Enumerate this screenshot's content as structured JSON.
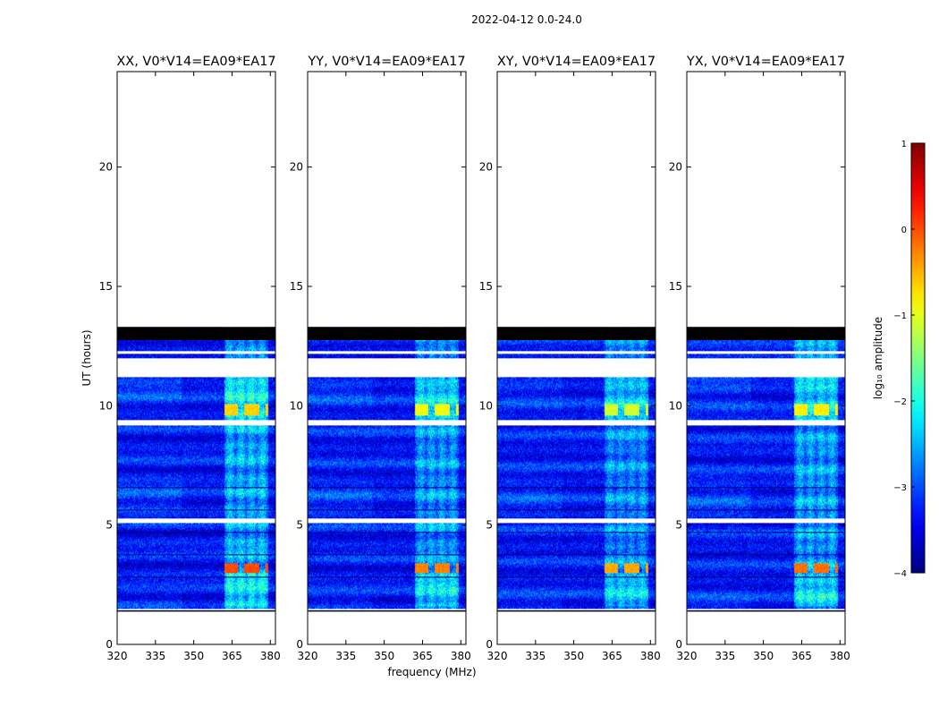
{
  "chart_data": {
    "type": "heatmap",
    "suptitle": "2022-04-12 0.0-24.0",
    "xlabel": "frequency (MHz)",
    "ylabel": "UT (hours)",
    "xlim": [
      320,
      382
    ],
    "ylim": [
      0,
      24
    ],
    "xticks": [
      "320",
      "335",
      "350",
      "365",
      "380"
    ],
    "yticks": [
      "0",
      "5",
      "10",
      "15",
      "20"
    ],
    "panels": [
      {
        "title": "XX, V0*V14=EA09*EA17",
        "strength": 1.0
      },
      {
        "title": "YY, V0*V14=EA09*EA17",
        "strength": 0.85
      },
      {
        "title": "XY, V0*V14=EA09*EA17",
        "strength": 0.75
      },
      {
        "title": "YX, V0*V14=EA09*EA17",
        "strength": 0.9
      }
    ],
    "data_extent_hours": [
      1.4,
      13.3
    ],
    "flagged_black_band_hours": [
      12.75,
      13.3
    ],
    "gap_bands_hours": [
      [
        11.2,
        12.0
      ],
      [
        1.4,
        1.5
      ],
      [
        5.1,
        5.3
      ],
      [
        9.2,
        9.4
      ],
      [
        12.2,
        12.3
      ]
    ],
    "rfi_frequency_range_mhz": [
      362,
      379
    ],
    "rfi_bursts_hours": [
      {
        "start": 3.0,
        "end": 3.4,
        "log_amplitude": 0.0
      },
      {
        "start": 9.6,
        "end": 10.1,
        "log_amplitude": -1.0
      }
    ],
    "colorbar": {
      "label": "log₁₀ amplitude",
      "range": [
        -4,
        1
      ],
      "ticks": [
        "1",
        "0",
        "−1",
        "−2",
        "−3",
        "−4"
      ],
      "colormap": "jet"
    }
  }
}
